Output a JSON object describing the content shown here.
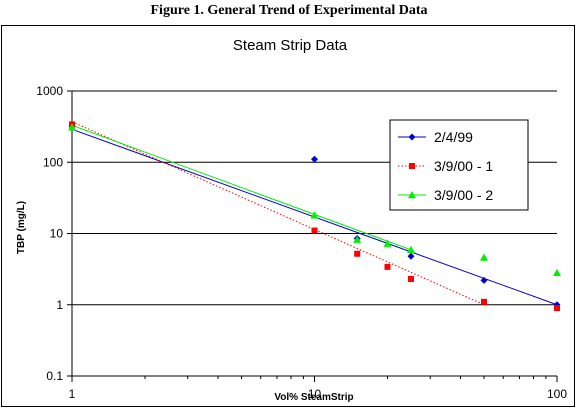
{
  "figure_caption": "Figure 1.  General Trend of Experimental Data",
  "chart_data": {
    "type": "scatter",
    "title": "Steam Strip Data",
    "xlabel": "Vol% SteamStrip",
    "ylabel": "TBP (mg/L)",
    "x_scale": "log",
    "y_scale": "log",
    "xlim": [
      1,
      100
    ],
    "ylim": [
      0.1,
      1000
    ],
    "x_ticks": [
      1,
      10,
      100
    ],
    "x_tick_labels": [
      "1",
      "10",
      "100"
    ],
    "y_ticks": [
      0.1,
      1,
      10,
      100,
      1000
    ],
    "y_tick_labels": [
      "0.1",
      "1",
      "10",
      "100",
      "1000"
    ],
    "grid": "horizontal major",
    "legend_position": "right",
    "series": [
      {
        "name": "2/4/99",
        "color": "#0000cc",
        "marker": "diamond",
        "line": "solid",
        "points": [
          [
            1,
            320
          ],
          [
            10,
            110
          ],
          [
            15,
            8.5
          ],
          [
            25,
            4.8
          ],
          [
            50,
            2.2
          ],
          [
            100,
            1.0
          ]
        ],
        "trendline": [
          [
            1,
            290
          ],
          [
            100,
            1.0
          ]
        ]
      },
      {
        "name": "3/9/00 - 1",
        "color": "#ff0000",
        "marker": "square",
        "line": "dotted",
        "points": [
          [
            1,
            340
          ],
          [
            10,
            11
          ],
          [
            15,
            5.2
          ],
          [
            20,
            3.4
          ],
          [
            25,
            2.3
          ],
          [
            50,
            1.1
          ],
          [
            100,
            0.9
          ]
        ],
        "trendline": [
          [
            1,
            370
          ],
          [
            50,
            1.0
          ]
        ]
      },
      {
        "name": "3/9/00 - 2",
        "color": "#00ee00",
        "marker": "triangle",
        "line": "solid",
        "points": [
          [
            1,
            310
          ],
          [
            10,
            18
          ],
          [
            15,
            8.2
          ],
          [
            20,
            7.2
          ],
          [
            25,
            5.9
          ],
          [
            50,
            4.6
          ],
          [
            100,
            2.8
          ]
        ],
        "trendline": [
          [
            1,
            330
          ],
          [
            25,
            5.9
          ]
        ]
      }
    ]
  }
}
